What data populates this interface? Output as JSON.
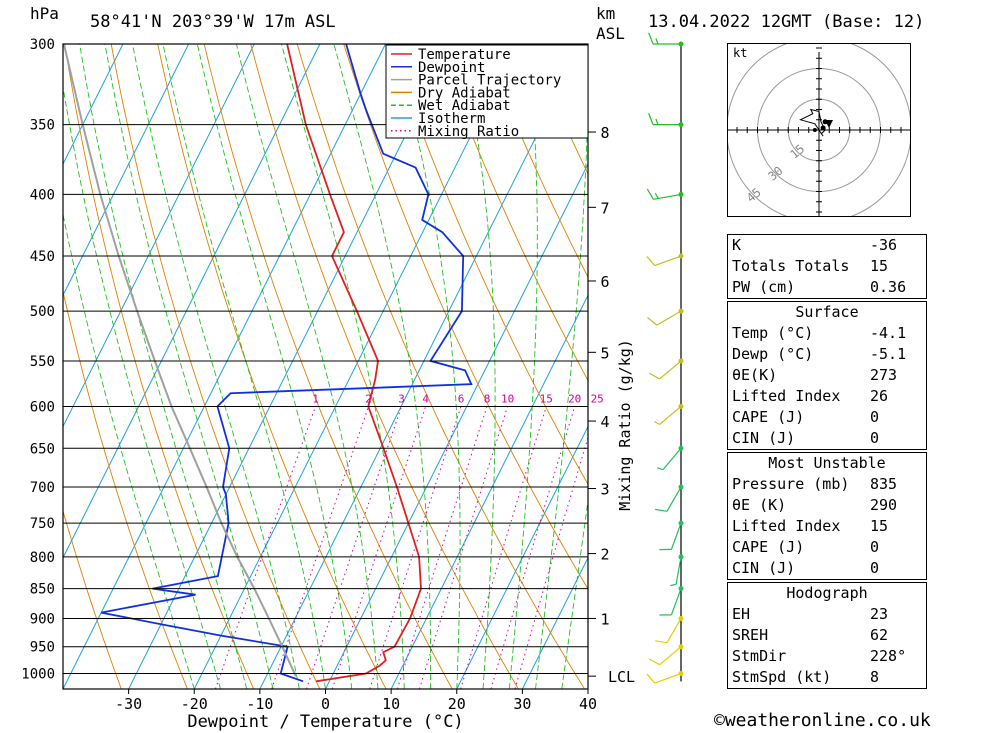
{
  "header": {
    "hpa_label": "hPa",
    "location": "58°41'N  203°39'W  17m  ASL",
    "km_label": "km",
    "asl_label": "ASL",
    "datetime": "13.04.2022  12GMT  (Base: 12)"
  },
  "chart_data": {
    "type": "skew-t",
    "xlabel": "Dewpoint / Temperature (°C)",
    "ylabel": "hPa",
    "mixing_ratio_axis_label": "Mixing Ratio (g/kg)",
    "pressure_ticks": [
      300,
      350,
      400,
      450,
      500,
      550,
      600,
      650,
      700,
      750,
      800,
      850,
      900,
      950,
      1000
    ],
    "temperature_ticks": [
      -30,
      -20,
      -10,
      0,
      10,
      20,
      30,
      40
    ],
    "xlim": [
      -40,
      40
    ],
    "ylim_hpa": [
      1030,
      300
    ],
    "km_ticks": [
      {
        "km": 1,
        "hpa": 900
      },
      {
        "km": 2,
        "hpa": 795
      },
      {
        "km": 3,
        "hpa": 702
      },
      {
        "km": 4,
        "hpa": 617
      },
      {
        "km": 5,
        "hpa": 541
      },
      {
        "km": 6,
        "hpa": 472
      },
      {
        "km": 7,
        "hpa": 410
      },
      {
        "km": 8,
        "hpa": 355
      }
    ],
    "lcl_label": "LCL",
    "lcl_hpa": 1005,
    "mixing_ratio_labels": [
      "1",
      "2",
      "3",
      "4",
      "6",
      "8",
      "10",
      "15",
      "20",
      "25"
    ],
    "mixing_ratio_values": [
      1,
      2,
      3,
      4,
      6,
      8,
      10,
      15,
      20,
      25
    ],
    "legend": [
      {
        "name": "Temperature",
        "color": "#e02020",
        "style": "solid"
      },
      {
        "name": "Dewpoint",
        "color": "#1030e0",
        "style": "solid"
      },
      {
        "name": "Parcel Trajectory",
        "color": "#a0a0a0",
        "style": "solid"
      },
      {
        "name": "Dry Adiabat",
        "color": "#e08000",
        "style": "solid"
      },
      {
        "name": "Wet Adiabat",
        "color": "#20c020",
        "style": "dashed"
      },
      {
        "name": "Isotherm",
        "color": "#20a0e0",
        "style": "solid"
      },
      {
        "name": "Mixing Ratio",
        "color": "#d000a0",
        "style": "dotted"
      }
    ],
    "series": [
      {
        "name": "Temperature",
        "points": [
          [
            1015,
            -2
          ],
          [
            1000,
            5
          ],
          [
            985,
            6.5
          ],
          [
            975,
            7
          ],
          [
            960,
            6
          ],
          [
            950,
            7.3
          ],
          [
            900,
            7.5
          ],
          [
            850,
            6.9
          ],
          [
            800,
            4.2
          ],
          [
            750,
            0
          ],
          [
            700,
            -4.5
          ],
          [
            650,
            -9.5
          ],
          [
            600,
            -15
          ],
          [
            570,
            -16
          ],
          [
            550,
            -17
          ],
          [
            500,
            -24
          ],
          [
            450,
            -32
          ],
          [
            430,
            -32
          ],
          [
            400,
            -37
          ],
          [
            350,
            -46
          ],
          [
            300,
            -55
          ]
        ]
      },
      {
        "name": "Dewpoint",
        "points": [
          [
            1015,
            -4
          ],
          [
            1000,
            -8
          ],
          [
            950,
            -9
          ],
          [
            930,
            -20
          ],
          [
            910,
            -30
          ],
          [
            890,
            -40
          ],
          [
            860,
            -27
          ],
          [
            850,
            -34
          ],
          [
            830,
            -25
          ],
          [
            750,
            -27.4
          ],
          [
            710,
            -30
          ],
          [
            700,
            -31
          ],
          [
            650,
            -33
          ],
          [
            600,
            -38
          ],
          [
            585,
            -37
          ],
          [
            575,
            -1
          ],
          [
            560,
            -3
          ],
          [
            550,
            -9
          ],
          [
            500,
            -8
          ],
          [
            450,
            -12
          ],
          [
            430,
            -17
          ],
          [
            420,
            -21
          ],
          [
            400,
            -22
          ],
          [
            380,
            -26
          ],
          [
            370,
            -32
          ],
          [
            340,
            -38
          ],
          [
            330,
            -40
          ],
          [
            300,
            -46
          ]
        ]
      },
      {
        "name": "Parcel Trajectory",
        "points": [
          [
            1005,
            -5.5
          ],
          [
            950,
            -9.8
          ],
          [
            900,
            -14
          ],
          [
            850,
            -18.5
          ],
          [
            800,
            -23.5
          ],
          [
            750,
            -28.5
          ],
          [
            700,
            -33.5
          ],
          [
            650,
            -39
          ],
          [
            600,
            -45
          ],
          [
            550,
            -51
          ],
          [
            500,
            -57.5
          ],
          [
            450,
            -64.5
          ],
          [
            400,
            -72
          ],
          [
            350,
            -80
          ],
          [
            300,
            -89
          ]
        ]
      }
    ],
    "wind_barbs": [
      {
        "hpa": 1000,
        "dir": 250,
        "kt": 10
      },
      {
        "hpa": 950,
        "dir": 230,
        "kt": 10
      },
      {
        "hpa": 900,
        "dir": 210,
        "kt": 10
      },
      {
        "hpa": 850,
        "dir": 200,
        "kt": 10
      },
      {
        "hpa": 800,
        "dir": 190,
        "kt": 5
      },
      {
        "hpa": 750,
        "dir": 200,
        "kt": 10
      },
      {
        "hpa": 700,
        "dir": 210,
        "kt": 10
      },
      {
        "hpa": 650,
        "dir": 220,
        "kt": 5
      },
      {
        "hpa": 600,
        "dir": 230,
        "kt": 5
      },
      {
        "hpa": 550,
        "dir": 230,
        "kt": 10
      },
      {
        "hpa": 500,
        "dir": 240,
        "kt": 10
      },
      {
        "hpa": 450,
        "dir": 250,
        "kt": 10
      },
      {
        "hpa": 400,
        "dir": 260,
        "kt": 15
      },
      {
        "hpa": 350,
        "dir": 270,
        "kt": 15
      },
      {
        "hpa": 300,
        "dir": 270,
        "kt": 15
      }
    ],
    "hodograph": {
      "unit_label": "kt",
      "ring_labels": [
        "15",
        "30",
        "45"
      ],
      "ring_values": [
        15,
        30,
        45
      ],
      "trace": [
        [
          2,
          -3
        ],
        [
          -2,
          3
        ],
        [
          -9,
          5
        ],
        [
          -5,
          7
        ],
        [
          -3,
          8
        ],
        [
          -4,
          10
        ],
        [
          0,
          9
        ],
        [
          1,
          4
        ],
        [
          3,
          0
        ],
        [
          1,
          -2
        ]
      ],
      "storm_motion": {
        "u": -2,
        "v": 0
      },
      "points": [
        {
          "u": 3,
          "v": 4
        },
        {
          "u": 2,
          "v": 1
        }
      ]
    }
  },
  "indices": {
    "top": [
      {
        "label": "K",
        "value": "-36"
      },
      {
        "label": "Totals Totals",
        "value": "15"
      },
      {
        "label": "PW (cm)",
        "value": "0.36"
      }
    ],
    "surface": {
      "title": "Surface",
      "rows": [
        {
          "label": "Temp (°C)",
          "value": "-4.1"
        },
        {
          "label": "Dewp (°C)",
          "value": "-5.1"
        },
        {
          "label": "θE(K)",
          "value": "273"
        },
        {
          "label": "Lifted Index",
          "value": "26"
        },
        {
          "label": "CAPE (J)",
          "value": "0"
        },
        {
          "label": "CIN (J)",
          "value": "0"
        }
      ]
    },
    "most_unstable": {
      "title": "Most Unstable",
      "rows": [
        {
          "label": "Pressure (mb)",
          "value": "835"
        },
        {
          "label": "θE (K)",
          "value": "290"
        },
        {
          "label": "Lifted Index",
          "value": "15"
        },
        {
          "label": "CAPE (J)",
          "value": "0"
        },
        {
          "label": "CIN (J)",
          "value": "0"
        }
      ]
    },
    "hodograph": {
      "title": "Hodograph",
      "rows": [
        {
          "label": "EH",
          "value": "23"
        },
        {
          "label": "SREH",
          "value": "62"
        },
        {
          "label": "StmDir",
          "value": "228°"
        },
        {
          "label": "StmSpd (kt)",
          "value": "8"
        }
      ]
    }
  },
  "footer": {
    "copyright": "©weatheronline.co.uk"
  }
}
